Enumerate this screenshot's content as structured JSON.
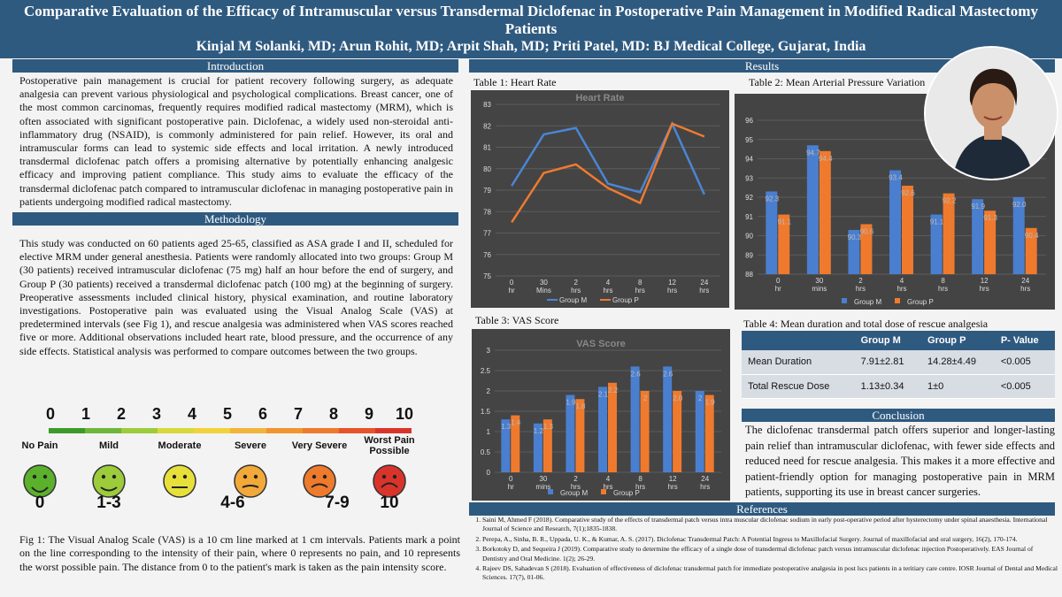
{
  "header": {
    "title": "Comparative Evaluation of the Efficacy of Intramuscular versus Transdermal Diclofenac in Postoperative Pain Management in Modified Radical Mastectomy Patients",
    "authors": "Kinjal M Solanki, MD; Arun Rohit, MD; Arpit Shah, MD; Priti Patel, MD: BJ Medical College, Gujarat, India"
  },
  "sections": {
    "introduction": "Introduction",
    "methodology": "Methodology",
    "results": "Results",
    "conclusion": "Conclusion",
    "references": "References"
  },
  "introduction_text": "Postoperative pain management is crucial for patient recovery following surgery, as adequate analgesia can prevent various physiological and psychological complications. Breast cancer, one of the most common carcinomas, frequently requires modified radical mastectomy (MRM), which is often associated with significant postoperative pain. Diclofenac, a widely used non-steroidal anti-inflammatory drug (NSAID), is commonly administered for pain relief. However, its oral and intramuscular forms can lead to systemic side effects and local irritation. A newly introduced transdermal diclofenac patch offers a promising alternative by potentially enhancing analgesic efficacy and improving patient compliance. This study aims to evaluate the efficacy of the transdermal diclofenac patch compared to intramuscular diclofenac in managing postoperative pain in patients undergoing modified radical mastectomy.",
  "methodology_text": "This study was conducted on 60 patients aged 25-65, classified as ASA grade I and II, scheduled for elective MRM under general anesthesia. Patients were randomly allocated into two groups: Group M (30 patients) received intramuscular diclofenac (75 mg) half an hour before the end of surgery, and Group P (30 patients) received a transdermal diclofenac patch (100 mg) at the beginning of surgery. Preoperative assessments included clinical history, physical examination, and routine laboratory investigations. Postoperative pain was evaluated using the Visual Analog Scale (VAS) at predetermined intervals (see Fig 1), and rescue analgesia was administered when VAS scores reached five or more. Additional observations included heart rate, blood pressure, and the occurrence of any side effects. Statistical analysis was performed to compare outcomes between the two groups.",
  "vas": {
    "numbers": [
      "0",
      "1",
      "2",
      "3",
      "4",
      "5",
      "6",
      "7",
      "8",
      "9",
      "10"
    ],
    "categories": [
      "No Pain",
      "Mild",
      "Moderate",
      "Severe",
      "Very Severe",
      "Worst Pain Possible"
    ],
    "ranges": [
      "0",
      "1-3",
      "4-6",
      "7-9",
      "10"
    ],
    "colors": [
      "#5bb02c",
      "#9ccc3a",
      "#e8e03a",
      "#f2a93a",
      "#ee7a2c",
      "#d9342b"
    ]
  },
  "fig1_caption": "Fig 1: The Visual Analog Scale (VAS) is a 10 cm line marked at 1 cm intervals. Patients mark a point on the line corresponding to the intensity of their pain, where 0 represents no pain, and 10 represents the worst possible pain. The distance from 0 to the patient's mark is taken as the pain intensity score.",
  "tables": {
    "t1_caption": "Table 1: Heart Rate",
    "t2_caption": "Table 2: Mean Arterial Pressure Variation",
    "t3_caption": "Table 3: VAS Score",
    "t4_caption": "Table 4: Mean duration and total dose of rescue analgesia"
  },
  "table4": {
    "headers": [
      "",
      "Group M",
      "Group P",
      "P- Value"
    ],
    "rows": [
      [
        "Mean Duration",
        "7.91±2.81",
        "14.28±4.49",
        "<0.005"
      ],
      [
        "Total Rescue Dose",
        "1.13±0.34",
        "1±0",
        "<0.005"
      ]
    ]
  },
  "conclusion_text": "The diclofenac transdermal patch offers superior and longer-lasting pain relief than intramuscular diclofenac, with fewer side effects and reduced need for rescue analgesia. This makes it a more effective and patient-friendly option for managing postoperative pain in MRM patients, supporting its use in breast cancer surgeries.",
  "references": [
    "Saini M, Ahmed F (2018). Comparative study of the effects of transdermal patch versus intra muscular diclofenac sodium in early post-operative period after hysterectomy under spinal anaesthesia. International Journal of Science and Research, 7(1);1835-1838.",
    "Perepa, A., Sinha, B. R., Uppada, U. K., & Kumar, A. S. (2017). Diclofenac Transdermal Patch: A Potential Ingress to Maxillofacial Surgery. Journal of maxillofacial and oral surgery, 16(2), 170-174.",
    "Borkotoky D, and Sequeira J (2019). Comparative study to determine the efficacy of a single dose of transdermal diclofenac patch versus intramuscular diclofenac injection Postoperatively. EAS Journal of Dentistry and Oral Medicine. 1(2); 26-29.",
    "Rajeev DS, Sahadevan S (2018). Evaluation of effectiveness of diclofenac transdermal patch for immediate postoperative analgesia in post lscs patients in a teritiary care centre. IOSR Journal of Dental and Medical Sciences. 17(7), 01-06."
  ],
  "chart_data": [
    {
      "type": "line",
      "title": "Heart Rate",
      "categories": [
        "0 hr",
        "30 Mins",
        "2 hrs",
        "4 hrs",
        "8 hrs",
        "12 hrs",
        "24 hrs"
      ],
      "ylim": [
        75,
        83
      ],
      "yticks": [
        75,
        76,
        77,
        78,
        79,
        80,
        81,
        82,
        83
      ],
      "series": [
        {
          "name": "Group M",
          "values": [
            79.2,
            81.6,
            81.9,
            79.3,
            78.9,
            82.1,
            78.8
          ],
          "color": "#4a86d6"
        },
        {
          "name": "Group P",
          "values": [
            77.5,
            79.8,
            80.2,
            79.1,
            78.4,
            82.1,
            81.5
          ],
          "color": "#f07a2f"
        }
      ],
      "legend": "bottom"
    },
    {
      "type": "bar",
      "categories": [
        "0 hr",
        "30 mins",
        "2 hrs",
        "4 hrs",
        "8 hrs",
        "12 hrs",
        "24 hrs"
      ],
      "ylim": [
        88,
        96
      ],
      "yticks": [
        88,
        89,
        90,
        91,
        92,
        93,
        94,
        95,
        96
      ],
      "series": [
        {
          "name": "Group M",
          "values": [
            92.3,
            94.7,
            90.3,
            93.4,
            91.1,
            91.9,
            92.0
          ],
          "labels": [
            "92.3",
            "94.7",
            "90.3",
            "93.4",
            "91.1",
            "91.9",
            "92.0"
          ],
          "color": "#4a7fd0"
        },
        {
          "name": "Group P",
          "values": [
            91.1,
            94.4,
            90.6,
            92.6,
            92.2,
            91.3,
            90.4
          ],
          "labels": [
            "91.1",
            "94.4",
            "90.6",
            "92.6",
            "92.2",
            "91.3",
            "90.4"
          ],
          "color": "#ef7a2e"
        }
      ],
      "legend": "bottom"
    },
    {
      "type": "bar",
      "title": "VAS Score",
      "categories": [
        "0 hr",
        "30 mins",
        "2 hrs",
        "4 hrs",
        "8 hrs",
        "12 hrs",
        "24 hrs"
      ],
      "ylim": [
        0,
        3
      ],
      "yticks": [
        0,
        0.5,
        1,
        1.5,
        2,
        2.5,
        3
      ],
      "series": [
        {
          "name": "Group M",
          "values": [
            1.3,
            1.2,
            1.9,
            2.1,
            2.6,
            2.6,
            2.0
          ],
          "labels": [
            "1.3",
            "1.2",
            "1.9",
            "2.1",
            "2.6",
            "2.6",
            "2"
          ],
          "color": "#4a7fd0"
        },
        {
          "name": "Group P",
          "values": [
            1.4,
            1.3,
            1.8,
            2.2,
            2.0,
            2.0,
            1.9
          ],
          "labels": [
            "1.4",
            "1.3",
            "1.8",
            "2.2",
            "2",
            "2.0",
            "1.9"
          ],
          "color": "#ef7a2e"
        }
      ],
      "legend": "bottom"
    }
  ]
}
